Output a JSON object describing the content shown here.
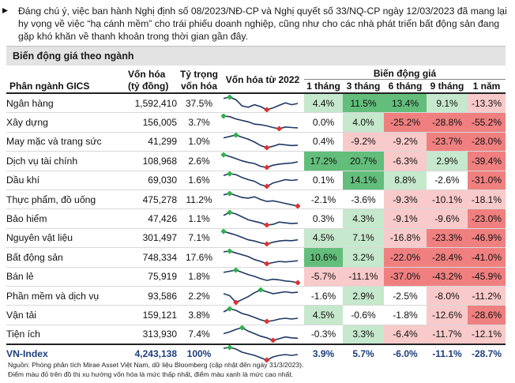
{
  "intro_text": "Đáng chú ý, việc ban hành Nghị định số 08/2023/NĐ-CP và Nghị quyết số 33/NQ-CP ngày 12/03/2023 đã mang lại hy vọng về việc “hạ cánh mềm” cho trái phiếu doanh nghiệp, cũng như cho các nhà phát triển bất động sản đang gặp khó khăn về thanh khoản trong thời gian gần đây.",
  "section_title": "Biến động giá theo ngành",
  "header": {
    "sector": "Phân ngành GICS",
    "mcap_line1": "Vốn hóa",
    "mcap_line2": "(tỷ đồng)",
    "weight_line1": "Tỷ trọng",
    "weight_line2": "vốn hóa",
    "spark": "Vốn hóa từ 2022",
    "change_group": "Biến động giá",
    "periods": [
      "1 tháng",
      "3 tháng",
      "6 tháng",
      "9 tháng",
      "1 năm"
    ]
  },
  "colors": {
    "green_strong": "#63be7b",
    "green_light": "#c6e8cc",
    "red_strong": "#f08080",
    "red_light": "#f9caca",
    "spark_max": "#2cb34a",
    "spark_min": "#e03131",
    "spark_line": "#1f3864"
  },
  "rows": [
    {
      "name": "Ngân hàng",
      "mcap": "1,592,410",
      "weight": "37.5%",
      "changes": [
        "4.4%",
        "11.5%",
        "13.4%",
        "9.1%",
        "-13.3%"
      ],
      "spark": [
        62,
        64,
        60,
        50,
        48,
        52,
        49,
        44,
        47,
        51,
        55,
        52,
        54
      ]
    },
    {
      "name": "Xây dựng",
      "mcap": "156,005",
      "weight": "3.7%",
      "changes": [
        "0.0%",
        "4.0%",
        "-25.2%",
        "-28.8%",
        "-55.2%"
      ],
      "spark": [
        70,
        68,
        60,
        55,
        50,
        42,
        40,
        36,
        30,
        26,
        32,
        30,
        29
      ]
    },
    {
      "name": "May mặc và trang sức",
      "mcap": "41,299",
      "weight": "1.0%",
      "changes": [
        "0.4%",
        "-9.2%",
        "-9.2%",
        "-23.7%",
        "-28.0%"
      ],
      "spark": [
        62,
        66,
        70,
        64,
        58,
        50,
        40,
        34,
        38,
        44,
        42,
        40,
        41
      ]
    },
    {
      "name": "Dịch vụ tài chính",
      "mcap": "108,968",
      "weight": "2.6%",
      "changes": [
        "17.2%",
        "20.7%",
        "-6.3%",
        "2.9%",
        "-39.4%"
      ],
      "spark": [
        72,
        66,
        58,
        50,
        44,
        40,
        30,
        26,
        34,
        38,
        40,
        42,
        46
      ]
    },
    {
      "name": "Dầu khí",
      "mcap": "69,030",
      "weight": "1.6%",
      "changes": [
        "0.1%",
        "14.1%",
        "8.8%",
        "-2.6%",
        "-31.0%"
      ],
      "spark": [
        60,
        64,
        62,
        55,
        50,
        46,
        38,
        34,
        42,
        46,
        50,
        48,
        50
      ]
    },
    {
      "name": "Thực phẩm, đồ uống",
      "mcap": "475,278",
      "weight": "11.2%",
      "changes": [
        "-2.1%",
        "-3.6%",
        "-9.3%",
        "-10.1%",
        "-18.1%"
      ],
      "spark": [
        66,
        70,
        64,
        58,
        56,
        60,
        52,
        46,
        48,
        44,
        40,
        36,
        32
      ]
    },
    {
      "name": "Bảo hiểm",
      "mcap": "47,426",
      "weight": "1.1%",
      "changes": [
        "0.3%",
        "4.3%",
        "-9.1%",
        "-9.6%",
        "-23.0%"
      ],
      "spark": [
        62,
        70,
        66,
        58,
        50,
        46,
        42,
        36,
        38,
        44,
        42,
        40,
        41
      ]
    },
    {
      "name": "Nguyên vật liệu",
      "mcap": "301,497",
      "weight": "7.1%",
      "changes": [
        "4.5%",
        "7.1%",
        "-16.8%",
        "-23.3%",
        "-46.9%"
      ],
      "spark": [
        72,
        66,
        60,
        52,
        44,
        40,
        34,
        30,
        36,
        40,
        42,
        41,
        44
      ]
    },
    {
      "name": "Bất động sản",
      "mcap": "748,334",
      "weight": "17.6%",
      "changes": [
        "10.6%",
        "3.2%",
        "-22.0%",
        "-28.4%",
        "-41.0%"
      ],
      "spark": [
        70,
        72,
        66,
        60,
        54,
        44,
        38,
        30,
        34,
        38,
        36,
        38,
        40
      ]
    },
    {
      "name": "Bán lẻ",
      "mcap": "75,919",
      "weight": "1.8%",
      "changes": [
        "-5.7%",
        "-11.1%",
        "-37.0%",
        "-43.2%",
        "-45.9%"
      ],
      "spark": [
        64,
        68,
        72,
        64,
        56,
        50,
        42,
        36,
        40,
        38,
        34,
        32,
        28
      ]
    },
    {
      "name": "Phần mềm và dịch vụ",
      "mcap": "93,586",
      "weight": "2.2%",
      "changes": [
        "-1.6%",
        "2.9%",
        "-2.5%",
        "-8.0%",
        "-11.2%"
      ],
      "spark": [
        58,
        54,
        40,
        46,
        52,
        60,
        66,
        62,
        58,
        60,
        62,
        60,
        61
      ]
    },
    {
      "name": "Vận tải",
      "mcap": "159,121",
      "weight": "3.8%",
      "changes": [
        "4.5%",
        "-0.6%",
        "-1.8%",
        "-12.6%",
        "-28.6%"
      ],
      "spark": [
        60,
        68,
        64,
        56,
        52,
        46,
        40,
        36,
        38,
        42,
        44,
        42,
        44
      ]
    },
    {
      "name": "Tiện ích",
      "mcap": "313,930",
      "weight": "7.4%",
      "changes": [
        "-0.3%",
        "3.3%",
        "-6.4%",
        "-11.7%",
        "-12.1%"
      ],
      "spark": [
        56,
        60,
        66,
        70,
        62,
        56,
        50,
        46,
        40,
        44,
        48,
        46,
        45
      ]
    }
  ],
  "total": {
    "name": "VN-Index",
    "mcap": "4,243,138",
    "weight": "100%",
    "changes": [
      "3.9%",
      "5.7%",
      "-6.0%",
      "-11.1%",
      "-28.7%"
    ],
    "spark": [
      62,
      64,
      60,
      52,
      48,
      44,
      38,
      32,
      40,
      44,
      46,
      44,
      46
    ]
  },
  "footer": {
    "line1": "Nguồn: Phòng phân tích Mirae Asset Việt Nam, dữ liệu Bloomberg (cập nhật đến ngày 31/3/2023).",
    "line2": "Điểm màu đỏ trên đồ thị xu hướng vốn hóa là mức thấp nhất, điểm màu xanh là mức cao nhất."
  }
}
